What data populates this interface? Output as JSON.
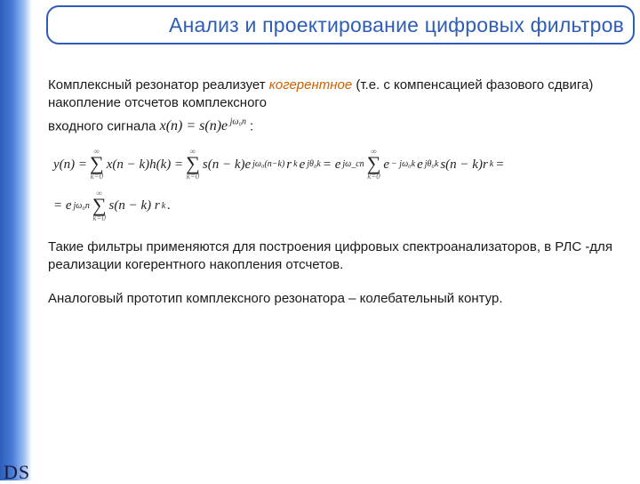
{
  "colors": {
    "accent": "#2d5db8",
    "italic_highlight": "#cc6000",
    "text": "#1a1a1a",
    "background": "#ffffff"
  },
  "title": "Анализ и проектирование цифровых фильтров",
  "para1_a": "Комплексный резонатор реализует ",
  "para1_italic": "когерентное",
  "para1_b": " (т.е. с компенсацией фазового сдвига) накопление отсчетов комплексного",
  "para1_line2a": "входного сигнала ",
  "para1_inline_math": "x(n) = s(n)e",
  "para1_inline_exp": " jω₀n",
  "para1_line2b": ":",
  "eq": {
    "y_lhs": "y(n) = ",
    "sum_top": "∞",
    "sum_bot": "k=0",
    "t1": "x(n − k)h(k) = ",
    "t2": "s(n − k)e",
    "e2": " jω₀(n−k)",
    "t3": " r",
    "e3": "k",
    "t4": " e",
    "e4": " jθ₀k",
    "t5": " = e",
    "e5": " jω_cn",
    "t6": "e",
    "e6": " − jω₀k",
    "t7": " e",
    "e7": " jθ₀k",
    "t8": " s(n − k)r",
    "e8": "k",
    "t9": " =",
    "row2a": "= e",
    "row2e1": " jω₀n",
    "row2b": "s(n − k) r",
    "row2e2": "k",
    "row2c": " ."
  },
  "para2": "Такие фильтры применяются для построения цифровых спектроанализаторов, в РЛС -для реализации когерентного накопления отсчетов.",
  "para3": "Аналоговый прототип комплексного резонатора – колебательный контур.",
  "footer": "DS"
}
